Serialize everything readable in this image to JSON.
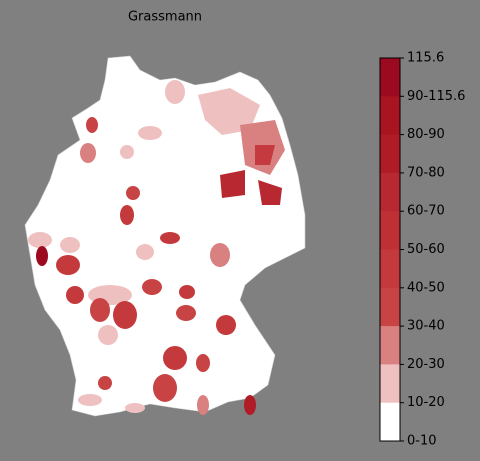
{
  "map": {
    "title": "Grassmann",
    "colorbar": {
      "labels": [
        "115.6",
        "90-115.6",
        "80-90",
        "70-80",
        "60-70",
        "50-60",
        "40-50",
        "30-40",
        "20-30",
        "10-20",
        "0-10"
      ],
      "colors": [
        "#9b0a20",
        "#a8141f",
        "#b01c26",
        "#b82830",
        "#bf3035",
        "#c4393c",
        "#c84444",
        "#d98080",
        "#efc0c0",
        "#ffffff"
      ]
    }
  }
}
